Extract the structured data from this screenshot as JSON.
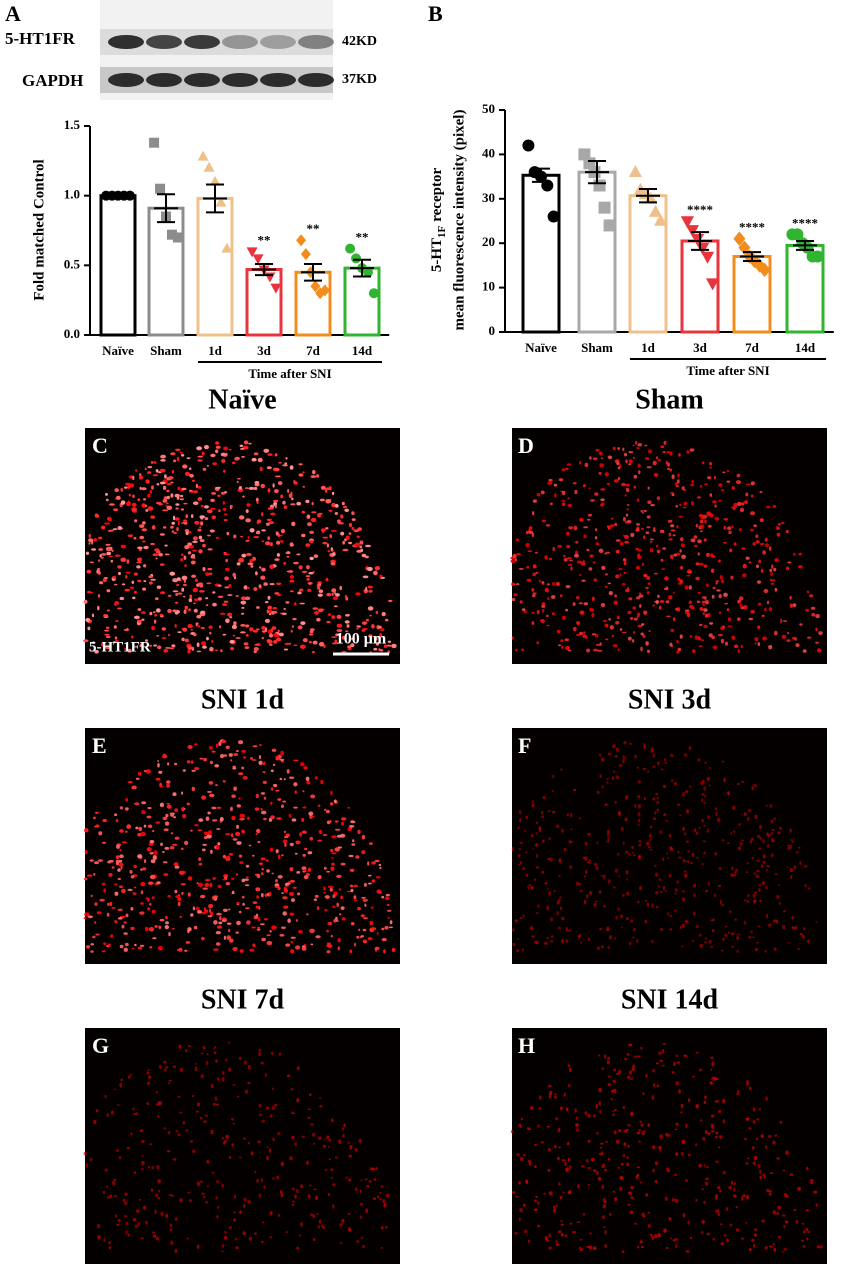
{
  "panel_labels": [
    "A",
    "B",
    "C",
    "D",
    "E",
    "F",
    "G",
    "H"
  ],
  "blot": {
    "rows": [
      {
        "name": "5-HT1FR",
        "size": "42KD"
      },
      {
        "name": "GAPDH",
        "size": "37KD"
      }
    ]
  },
  "chart_data": [
    {
      "type": "bar",
      "ylabel": "Fold matched Control",
      "group_label": "Time after SNI",
      "categories": [
        "Naïve",
        "Sham",
        "1d",
        "3d",
        "7d",
        "14d"
      ],
      "values": [
        1.0,
        0.91,
        0.98,
        0.47,
        0.45,
        0.48
      ],
      "errors": [
        0.01,
        0.1,
        0.1,
        0.04,
        0.06,
        0.06
      ],
      "colors": [
        "#000000",
        "#8c8c8c",
        "#f0c08a",
        "#e8343c",
        "#f28c1c",
        "#2fb52f"
      ],
      "markers": [
        "circle",
        "square",
        "triangle",
        "triangle-down",
        "diamond",
        "circle"
      ],
      "points": [
        [
          1.0,
          1.0,
          1.0,
          1.0,
          1.0
        ],
        [
          1.38,
          1.05,
          0.85,
          0.72,
          0.7
        ],
        [
          1.28,
          1.2,
          1.1,
          0.95,
          0.62
        ],
        [
          0.6,
          0.55,
          0.47,
          0.42,
          0.34
        ],
        [
          0.68,
          0.58,
          0.45,
          0.35,
          0.3,
          0.32
        ],
        [
          0.62,
          0.55,
          0.48,
          0.45,
          0.3
        ]
      ],
      "significance": [
        null,
        null,
        null,
        "**",
        "**",
        "**"
      ],
      "ylim": [
        0,
        1.5
      ],
      "yticks": [
        {
          "value": 0,
          "label": "0.0"
        },
        {
          "value": 0.5,
          "label": "0.5"
        },
        {
          "value": 1.0,
          "label": "1.0"
        },
        {
          "value": 1.5,
          "label": "1.5"
        }
      ]
    },
    {
      "type": "bar",
      "ylabel": {
        "main": "5-HT",
        "sub": "1F",
        "tail": "receptor",
        "line2": "mean fluorescence intensity (pixel)"
      },
      "group_label": "Time after SNI",
      "categories": [
        "Naïve",
        "Sham",
        "1d",
        "3d",
        "7d",
        "14d"
      ],
      "values": [
        35.3,
        36,
        30.7,
        20.5,
        17,
        19.5
      ],
      "errors": [
        1.5,
        2.5,
        1.5,
        2,
        1,
        1
      ],
      "colors": [
        "#000000",
        "#a8a8a8",
        "#f0c08a",
        "#e8343c",
        "#f28c1c",
        "#2fb52f"
      ],
      "markers": [
        "circle",
        "square",
        "triangle",
        "triangle-down",
        "diamond",
        "circle"
      ],
      "points": [
        [
          42,
          36,
          35,
          33,
          26
        ],
        [
          40,
          38,
          36,
          33,
          28,
          24
        ],
        [
          36,
          32,
          31,
          30,
          27,
          25
        ],
        [
          25,
          23,
          21,
          19,
          17,
          11
        ],
        [
          21,
          19,
          17,
          16,
          15,
          14
        ],
        [
          22,
          22,
          20,
          19,
          17,
          17
        ]
      ],
      "significance": [
        null,
        null,
        null,
        "****",
        "****",
        "****"
      ],
      "ylim": [
        0,
        50
      ],
      "yticks": [
        0,
        10,
        20,
        30,
        40,
        50
      ]
    }
  ],
  "images": [
    {
      "title": "Naïve",
      "stain": "5-HT1FR",
      "scale_bar": "100 μm"
    },
    {
      "title": "Sham"
    },
    {
      "title": "SNI 1d"
    },
    {
      "title": "SNI 3d"
    },
    {
      "title": "SNI 7d"
    },
    {
      "title": "SNI 14d"
    }
  ]
}
